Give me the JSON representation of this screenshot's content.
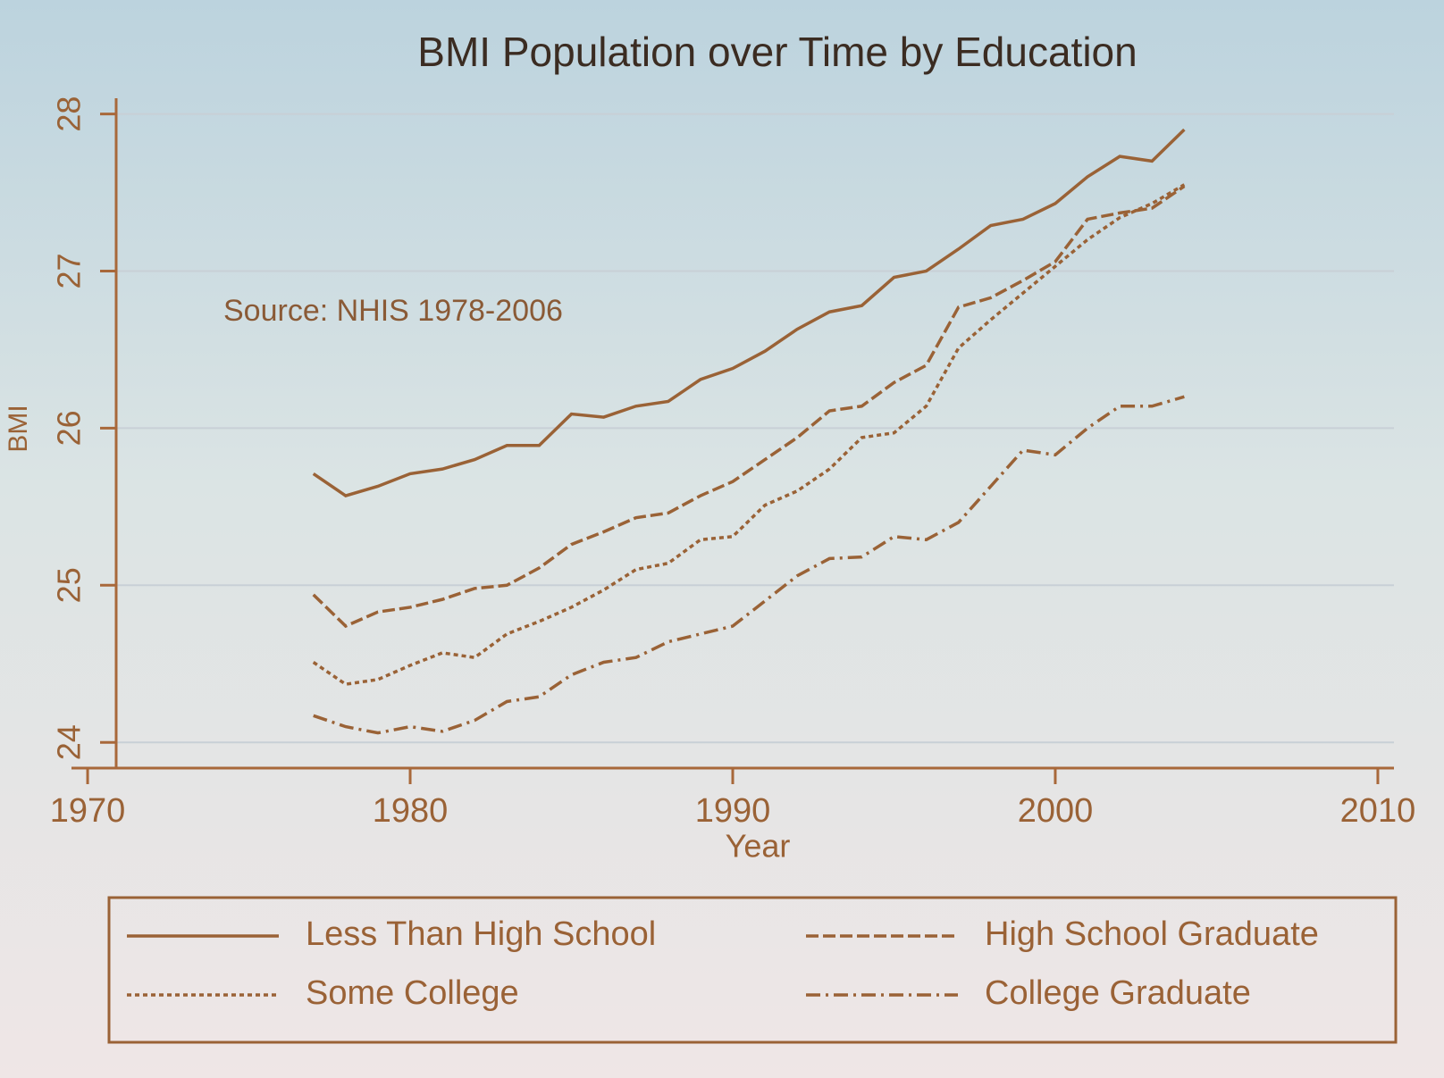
{
  "chart_data": {
    "type": "line",
    "title": "BMI Population over Time by Education",
    "annotation": "Source: NHIS 1978-2006",
    "x_label": "Year",
    "y_label": "BMI",
    "x": [
      1977,
      1978,
      1979,
      1980,
      1981,
      1982,
      1983,
      1984,
      1985,
      1986,
      1987,
      1988,
      1989,
      1990,
      1991,
      1992,
      1993,
      1994,
      1995,
      1996,
      1997,
      1998,
      1999,
      2000,
      2001,
      2002,
      2003,
      2004
    ],
    "series": [
      {
        "name": "Less Than High School",
        "color": "#9a6236",
        "style": "solid",
        "values": [
          25.71,
          25.57,
          25.63,
          25.71,
          25.74,
          25.8,
          25.89,
          25.89,
          26.09,
          26.07,
          26.14,
          26.17,
          26.31,
          26.38,
          26.49,
          26.63,
          26.74,
          26.78,
          26.96,
          27.0,
          27.14,
          27.29,
          27.33,
          27.43,
          27.6,
          27.73,
          27.7,
          27.9
        ]
      },
      {
        "name": "High School Graduate",
        "color": "#9a6236",
        "style": "dashed",
        "values": [
          24.94,
          24.74,
          24.83,
          24.86,
          24.91,
          24.98,
          25.0,
          25.11,
          25.26,
          25.34,
          25.43,
          25.46,
          25.57,
          25.66,
          25.8,
          25.94,
          26.11,
          26.14,
          26.29,
          26.4,
          26.77,
          26.83,
          26.94,
          27.06,
          27.33,
          27.37,
          27.4,
          27.54
        ]
      },
      {
        "name": "Some College",
        "color": "#9a6236",
        "style": "dotted",
        "values": [
          24.51,
          24.37,
          24.4,
          24.49,
          24.57,
          24.54,
          24.69,
          24.77,
          24.86,
          24.97,
          25.1,
          25.14,
          25.29,
          25.31,
          25.51,
          25.6,
          25.74,
          25.94,
          25.97,
          26.14,
          26.51,
          26.69,
          26.86,
          27.03,
          27.2,
          27.34,
          27.43,
          27.55
        ]
      },
      {
        "name": "College Graduate",
        "color": "#9a6236",
        "style": "dashdot",
        "values": [
          24.17,
          24.1,
          24.06,
          24.1,
          24.07,
          24.14,
          24.26,
          24.29,
          24.43,
          24.51,
          24.54,
          24.64,
          24.69,
          24.74,
          24.9,
          25.06,
          25.17,
          25.18,
          25.31,
          25.29,
          25.4,
          25.63,
          25.86,
          25.83,
          26.0,
          26.14,
          26.14,
          26.2
        ]
      }
    ],
    "xlim": [
      1969.5,
      2010.5
    ],
    "xticks": [
      1970,
      1980,
      1990,
      2000,
      2010
    ],
    "ylim": [
      23.95,
      28.1
    ],
    "yticks": [
      24,
      25,
      26,
      27,
      28
    ],
    "grid": true,
    "legend": "bottom"
  }
}
